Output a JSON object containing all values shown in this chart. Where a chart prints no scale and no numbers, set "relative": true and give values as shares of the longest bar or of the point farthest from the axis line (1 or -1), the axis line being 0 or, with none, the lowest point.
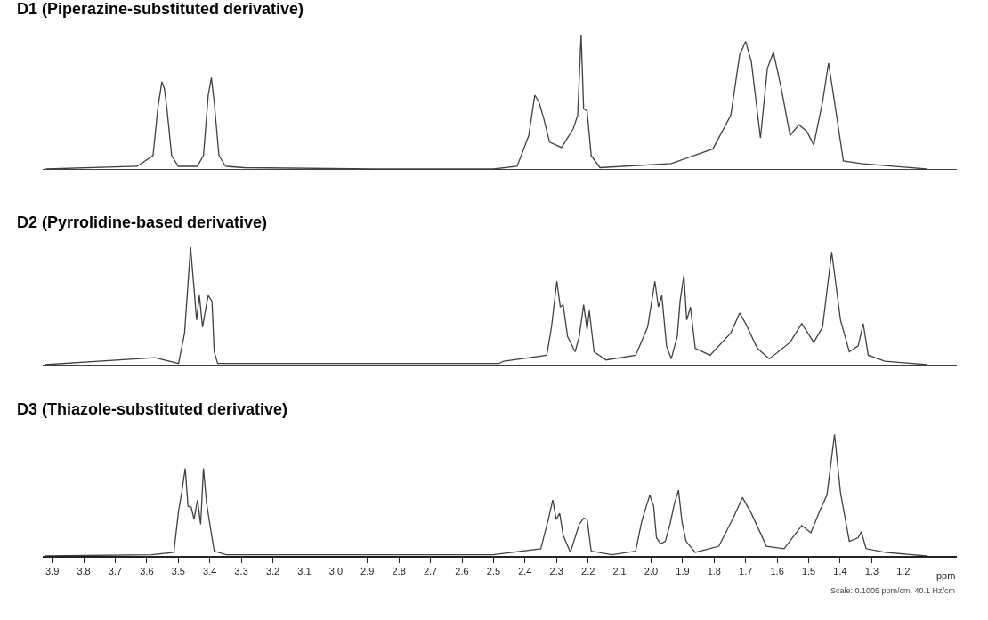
{
  "chart_data": [
    {
      "type": "line",
      "title": "D1 (Piperazine-substituted derivative)",
      "relative": true,
      "xlim": [
        3.93,
        1.03
      ],
      "tick_labels": false,
      "x": [
        3.92,
        3.63,
        3.58,
        3.565,
        3.552,
        3.544,
        3.536,
        3.521,
        3.5,
        3.44,
        3.42,
        3.405,
        3.395,
        3.386,
        3.371,
        3.35,
        3.29,
        2.88,
        2.5,
        2.425,
        2.388,
        2.369,
        2.356,
        2.341,
        2.322,
        2.284,
        2.247,
        2.233,
        2.222,
        2.214,
        2.203,
        2.19,
        2.162,
        1.936,
        1.804,
        1.747,
        1.719,
        1.7,
        1.682,
        1.653,
        1.631,
        1.612,
        1.587,
        1.559,
        1.531,
        1.506,
        1.484,
        1.456,
        1.437,
        1.418,
        1.39,
        1.333,
        1.126
      ],
      "series": [
        {
          "color": "#404040",
          "values": [
            0,
            0.02,
            0.1,
            0.45,
            0.65,
            0.6,
            0.45,
            0.1,
            0.02,
            0.02,
            0.1,
            0.55,
            0.68,
            0.5,
            0.1,
            0.02,
            0.01,
            0,
            0,
            0.02,
            0.25,
            0.55,
            0.5,
            0.38,
            0.2,
            0.16,
            0.3,
            0.4,
            1.0,
            0.45,
            0.43,
            0.1,
            0.01,
            0.04,
            0.15,
            0.4,
            0.85,
            0.95,
            0.8,
            0.23,
            0.75,
            0.87,
            0.6,
            0.25,
            0.33,
            0.28,
            0.18,
            0.5,
            0.79,
            0.5,
            0.06,
            0.04,
            0
          ]
        }
      ]
    },
    {
      "type": "line",
      "title": "D2 (Pyrrolidine-based derivative)",
      "relative": true,
      "xlim": [
        3.93,
        1.03
      ],
      "tick_labels": false,
      "x": [
        3.923,
        3.574,
        3.499,
        3.48,
        3.461,
        3.45,
        3.442,
        3.433,
        3.423,
        3.412,
        3.405,
        3.393,
        3.386,
        3.375,
        3.348,
        2.482,
        2.467,
        2.331,
        2.316,
        2.299,
        2.288,
        2.279,
        2.265,
        2.241,
        2.228,
        2.214,
        2.203,
        2.196,
        2.181,
        2.143,
        2.049,
        2.011,
        1.988,
        1.977,
        1.966,
        1.951,
        1.936,
        1.917,
        1.908,
        1.896,
        1.887,
        1.875,
        1.86,
        1.813,
        1.747,
        1.719,
        1.7,
        1.663,
        1.625,
        1.559,
        1.522,
        1.484,
        1.456,
        1.427,
        1.399,
        1.371,
        1.343,
        1.327,
        1.311,
        1.258,
        1.126
      ],
      "series": [
        {
          "color": "#404040",
          "values": [
            0,
            0.06,
            0.01,
            0.27,
            1,
            0.65,
            0.38,
            0.59,
            0.32,
            0.49,
            0.59,
            0.54,
            0.11,
            0.01,
            0.01,
            0.01,
            0.03,
            0.08,
            0.32,
            0.71,
            0.49,
            0.51,
            0.24,
            0.11,
            0.24,
            0.51,
            0.3,
            0.46,
            0.11,
            0.04,
            0.08,
            0.32,
            0.71,
            0.49,
            0.59,
            0.16,
            0.05,
            0.24,
            0.54,
            0.76,
            0.38,
            0.49,
            0.14,
            0.08,
            0.27,
            0.44,
            0.35,
            0.14,
            0.05,
            0.19,
            0.35,
            0.19,
            0.32,
            0.96,
            0.38,
            0.11,
            0.16,
            0.35,
            0.08,
            0.03,
            0
          ]
        }
      ]
    },
    {
      "type": "line",
      "title": "D3 (Thiazole-substituted derivative)",
      "relative": true,
      "xlim": [
        3.93,
        1.03
      ],
      "tick_labels": "x",
      "xlabel": "ppm",
      "xticks": [
        3.9,
        3.8,
        3.7,
        3.6,
        3.5,
        3.4,
        3.3,
        3.2,
        3.1,
        {
          "value": 3.0,
          "label": "3.0"
        },
        2.9,
        2.8,
        2.7,
        2.6,
        2.5,
        2.4,
        2.3,
        2.2,
        2.1,
        {
          "value": 2.0,
          "label": "2.0"
        },
        1.9,
        1.8,
        1.7,
        1.6,
        1.5,
        1.4,
        1.3,
        1.2
      ],
      "annotations": [
        "Scale: 0.1005 ppm/cm, 40.1 Hz/cm"
      ],
      "x": [
        3.923,
        3.584,
        3.514,
        3.499,
        3.489,
        3.478,
        3.469,
        3.459,
        3.45,
        3.439,
        3.429,
        3.42,
        3.41,
        3.401,
        3.386,
        3.348,
        2.501,
        2.35,
        2.326,
        2.312,
        2.301,
        2.29,
        2.279,
        2.256,
        2.228,
        2.214,
        2.203,
        2.19,
        2.124,
        2.049,
        2.03,
        2.015,
        2.004,
        1.992,
        1.983,
        1.97,
        1.955,
        1.94,
        1.926,
        1.913,
        1.902,
        1.889,
        1.86,
        1.785,
        1.738,
        1.71,
        1.682,
        1.634,
        1.578,
        1.522,
        1.493,
        1.465,
        1.442,
        1.418,
        1.399,
        1.371,
        1.343,
        1.333,
        1.318,
        1.258,
        1.126
      ],
      "series": [
        {
          "color": "#404040",
          "values": [
            0,
            0.01,
            0.03,
            0.37,
            0.52,
            0.72,
            0.41,
            0.4,
            0.3,
            0.46,
            0.26,
            0.72,
            0.43,
            0.28,
            0.04,
            0.01,
            0.01,
            0.06,
            0.3,
            0.46,
            0.3,
            0.35,
            0.17,
            0.03,
            0.26,
            0.31,
            0.3,
            0.04,
            0.01,
            0.04,
            0.28,
            0.41,
            0.5,
            0.41,
            0.15,
            0.1,
            0.12,
            0.26,
            0.43,
            0.54,
            0.28,
            0.12,
            0.03,
            0.08,
            0.32,
            0.48,
            0.35,
            0.08,
            0.06,
            0.25,
            0.19,
            0.37,
            0.5,
            1,
            0.52,
            0.12,
            0.15,
            0.2,
            0.06,
            0.03,
            0
          ]
        }
      ]
    }
  ]
}
